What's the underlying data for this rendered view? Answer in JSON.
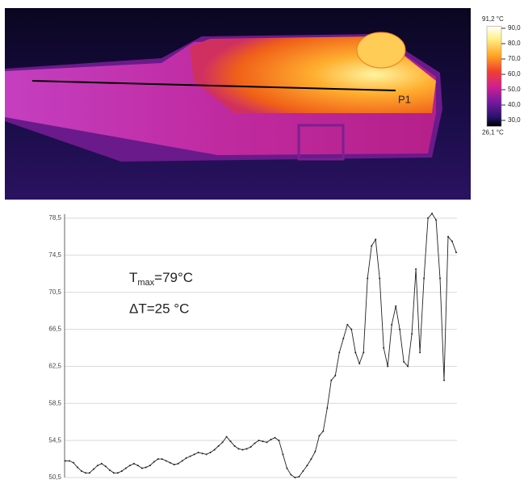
{
  "thermal_image": {
    "marker_label": "P1",
    "colorbar": {
      "max": {
        "value": 91.2,
        "label": "91,2 °C"
      },
      "min": {
        "value": 26.1,
        "label": "26,1 °C"
      },
      "ticks": [
        {
          "value": 90,
          "label": "90,0"
        },
        {
          "value": 80,
          "label": "80,0"
        },
        {
          "value": 70,
          "label": "70,0"
        },
        {
          "value": 60,
          "label": "60,0"
        },
        {
          "value": 50,
          "label": "50,0"
        },
        {
          "value": 40,
          "label": "40,0"
        },
        {
          "value": 30,
          "label": "30,0"
        }
      ]
    }
  },
  "chart_data": {
    "type": "line",
    "annotations": {
      "tmax": {
        "symbol": "T",
        "subscript": "max",
        "text": "=79°C"
      },
      "delta_t": "ΔT=25 °C"
    },
    "ylim": [
      50.5,
      78.5
    ],
    "yticks": [
      {
        "value": 50.5,
        "label": "50,5"
      },
      {
        "value": 54.5,
        "label": "54,5"
      },
      {
        "value": 58.5,
        "label": "58,5"
      },
      {
        "value": 62.5,
        "label": "62,5"
      },
      {
        "value": 66.5,
        "label": "66,5"
      },
      {
        "value": 70.5,
        "label": "70,5"
      },
      {
        "value": 74.5,
        "label": "74,5"
      },
      {
        "value": 78.5,
        "label": "78,5"
      }
    ],
    "grid": true,
    "color": "#222",
    "values": [
      52.3,
      52.3,
      52.1,
      51.6,
      51.2,
      51.0,
      51.0,
      51.4,
      51.8,
      52.0,
      51.7,
      51.3,
      51.0,
      51.0,
      51.2,
      51.5,
      51.8,
      52.0,
      51.8,
      51.5,
      51.6,
      51.8,
      52.2,
      52.5,
      52.5,
      52.3,
      52.1,
      51.9,
      52.0,
      52.3,
      52.6,
      52.8,
      53.0,
      53.2,
      53.1,
      53.0,
      53.2,
      53.5,
      53.9,
      54.3,
      54.9,
      54.4,
      53.9,
      53.6,
      53.5,
      53.6,
      53.8,
      54.2,
      54.5,
      54.4,
      54.3,
      54.6,
      54.8,
      54.5,
      53.0,
      51.5,
      50.8,
      50.5,
      50.6,
      51.2,
      51.8,
      52.5,
      53.3,
      55.0,
      55.5,
      58.0,
      61.0,
      61.5,
      64.0,
      65.5,
      67.0,
      66.5,
      64.0,
      62.8,
      64.0,
      72.0,
      75.5,
      76.2,
      72.0,
      64.5,
      62.5,
      67.0,
      69.0,
      66.5,
      63.0,
      62.5,
      66.0,
      73.0,
      64.0,
      72.0,
      78.5,
      79.0,
      78.3,
      72.0,
      61.0,
      76.5,
      76.0,
      74.8
    ]
  }
}
